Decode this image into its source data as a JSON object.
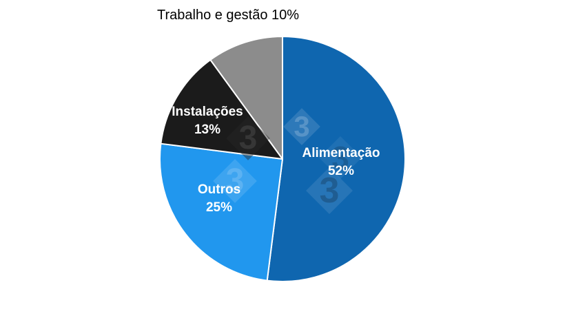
{
  "page": {
    "background": "#ffffff"
  },
  "chart_data": {
    "type": "pie",
    "title": "Trabalho e gestão 10%",
    "title_color": "#000000",
    "label_color": "#ffffff",
    "separator_color": "#ffffff",
    "start_angle": "12-o-clock",
    "direction": "clockwise",
    "total": 100,
    "slices": [
      {
        "label": "Alimentação",
        "value": 52,
        "percent_label": "52%",
        "color": "#0f66af",
        "label_position": "inside"
      },
      {
        "label": "Outros",
        "value": 25,
        "percent_label": "25%",
        "color": "#2197ee",
        "label_position": "inside"
      },
      {
        "label": "Instalações",
        "value": 13,
        "percent_label": "13%",
        "color": "#1b1b1b",
        "label_position": "inside"
      },
      {
        "label": "Trabalho e gestão",
        "value": 10,
        "percent_label": "10%",
        "color": "#8c8c8c",
        "label_position": "outside-top"
      }
    ]
  },
  "watermark": {
    "glyph": "3"
  }
}
